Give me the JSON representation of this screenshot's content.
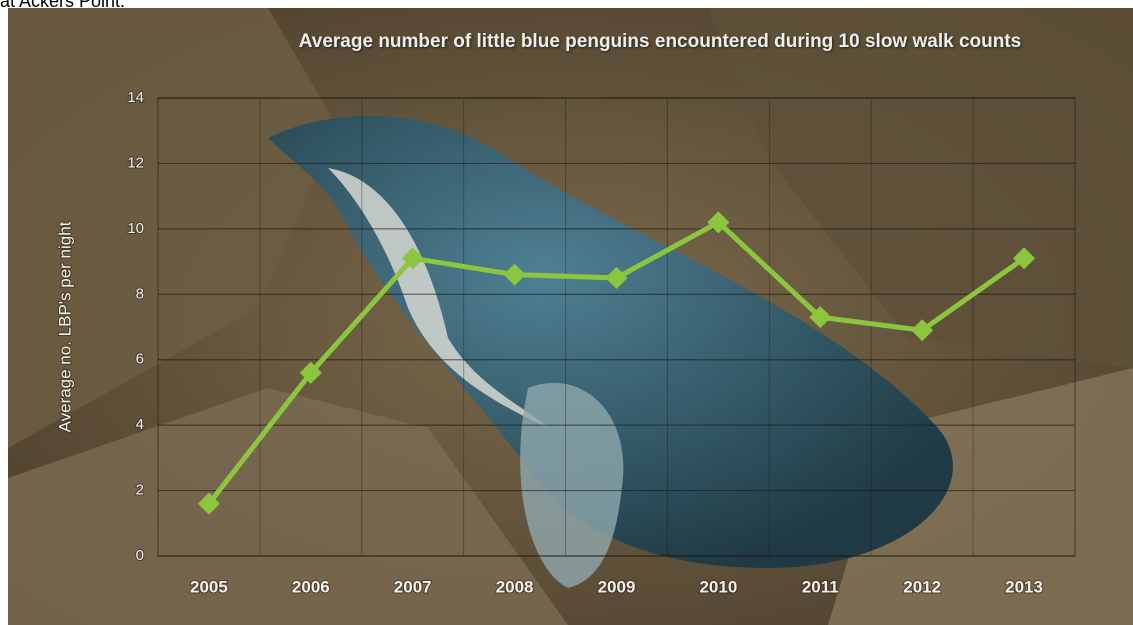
{
  "caption": "at Ackers Point.",
  "chart_data": {
    "type": "line",
    "title": "Average number of little blue penguins encountered during 10 slow walk counts",
    "y_label": "Average no. LBP's per night",
    "categories": [
      "2005",
      "2006",
      "2007",
      "2008",
      "2009",
      "2010",
      "2011",
      "2012",
      "2013"
    ],
    "values": [
      1.6,
      5.6,
      9.1,
      8.6,
      8.5,
      10.2,
      7.3,
      6.9,
      9.1
    ],
    "color": "#8cc63f",
    "ylim": [
      0,
      14
    ],
    "yticks": [
      0,
      2,
      4,
      6,
      8,
      10,
      12,
      14
    ],
    "grid": true
  }
}
